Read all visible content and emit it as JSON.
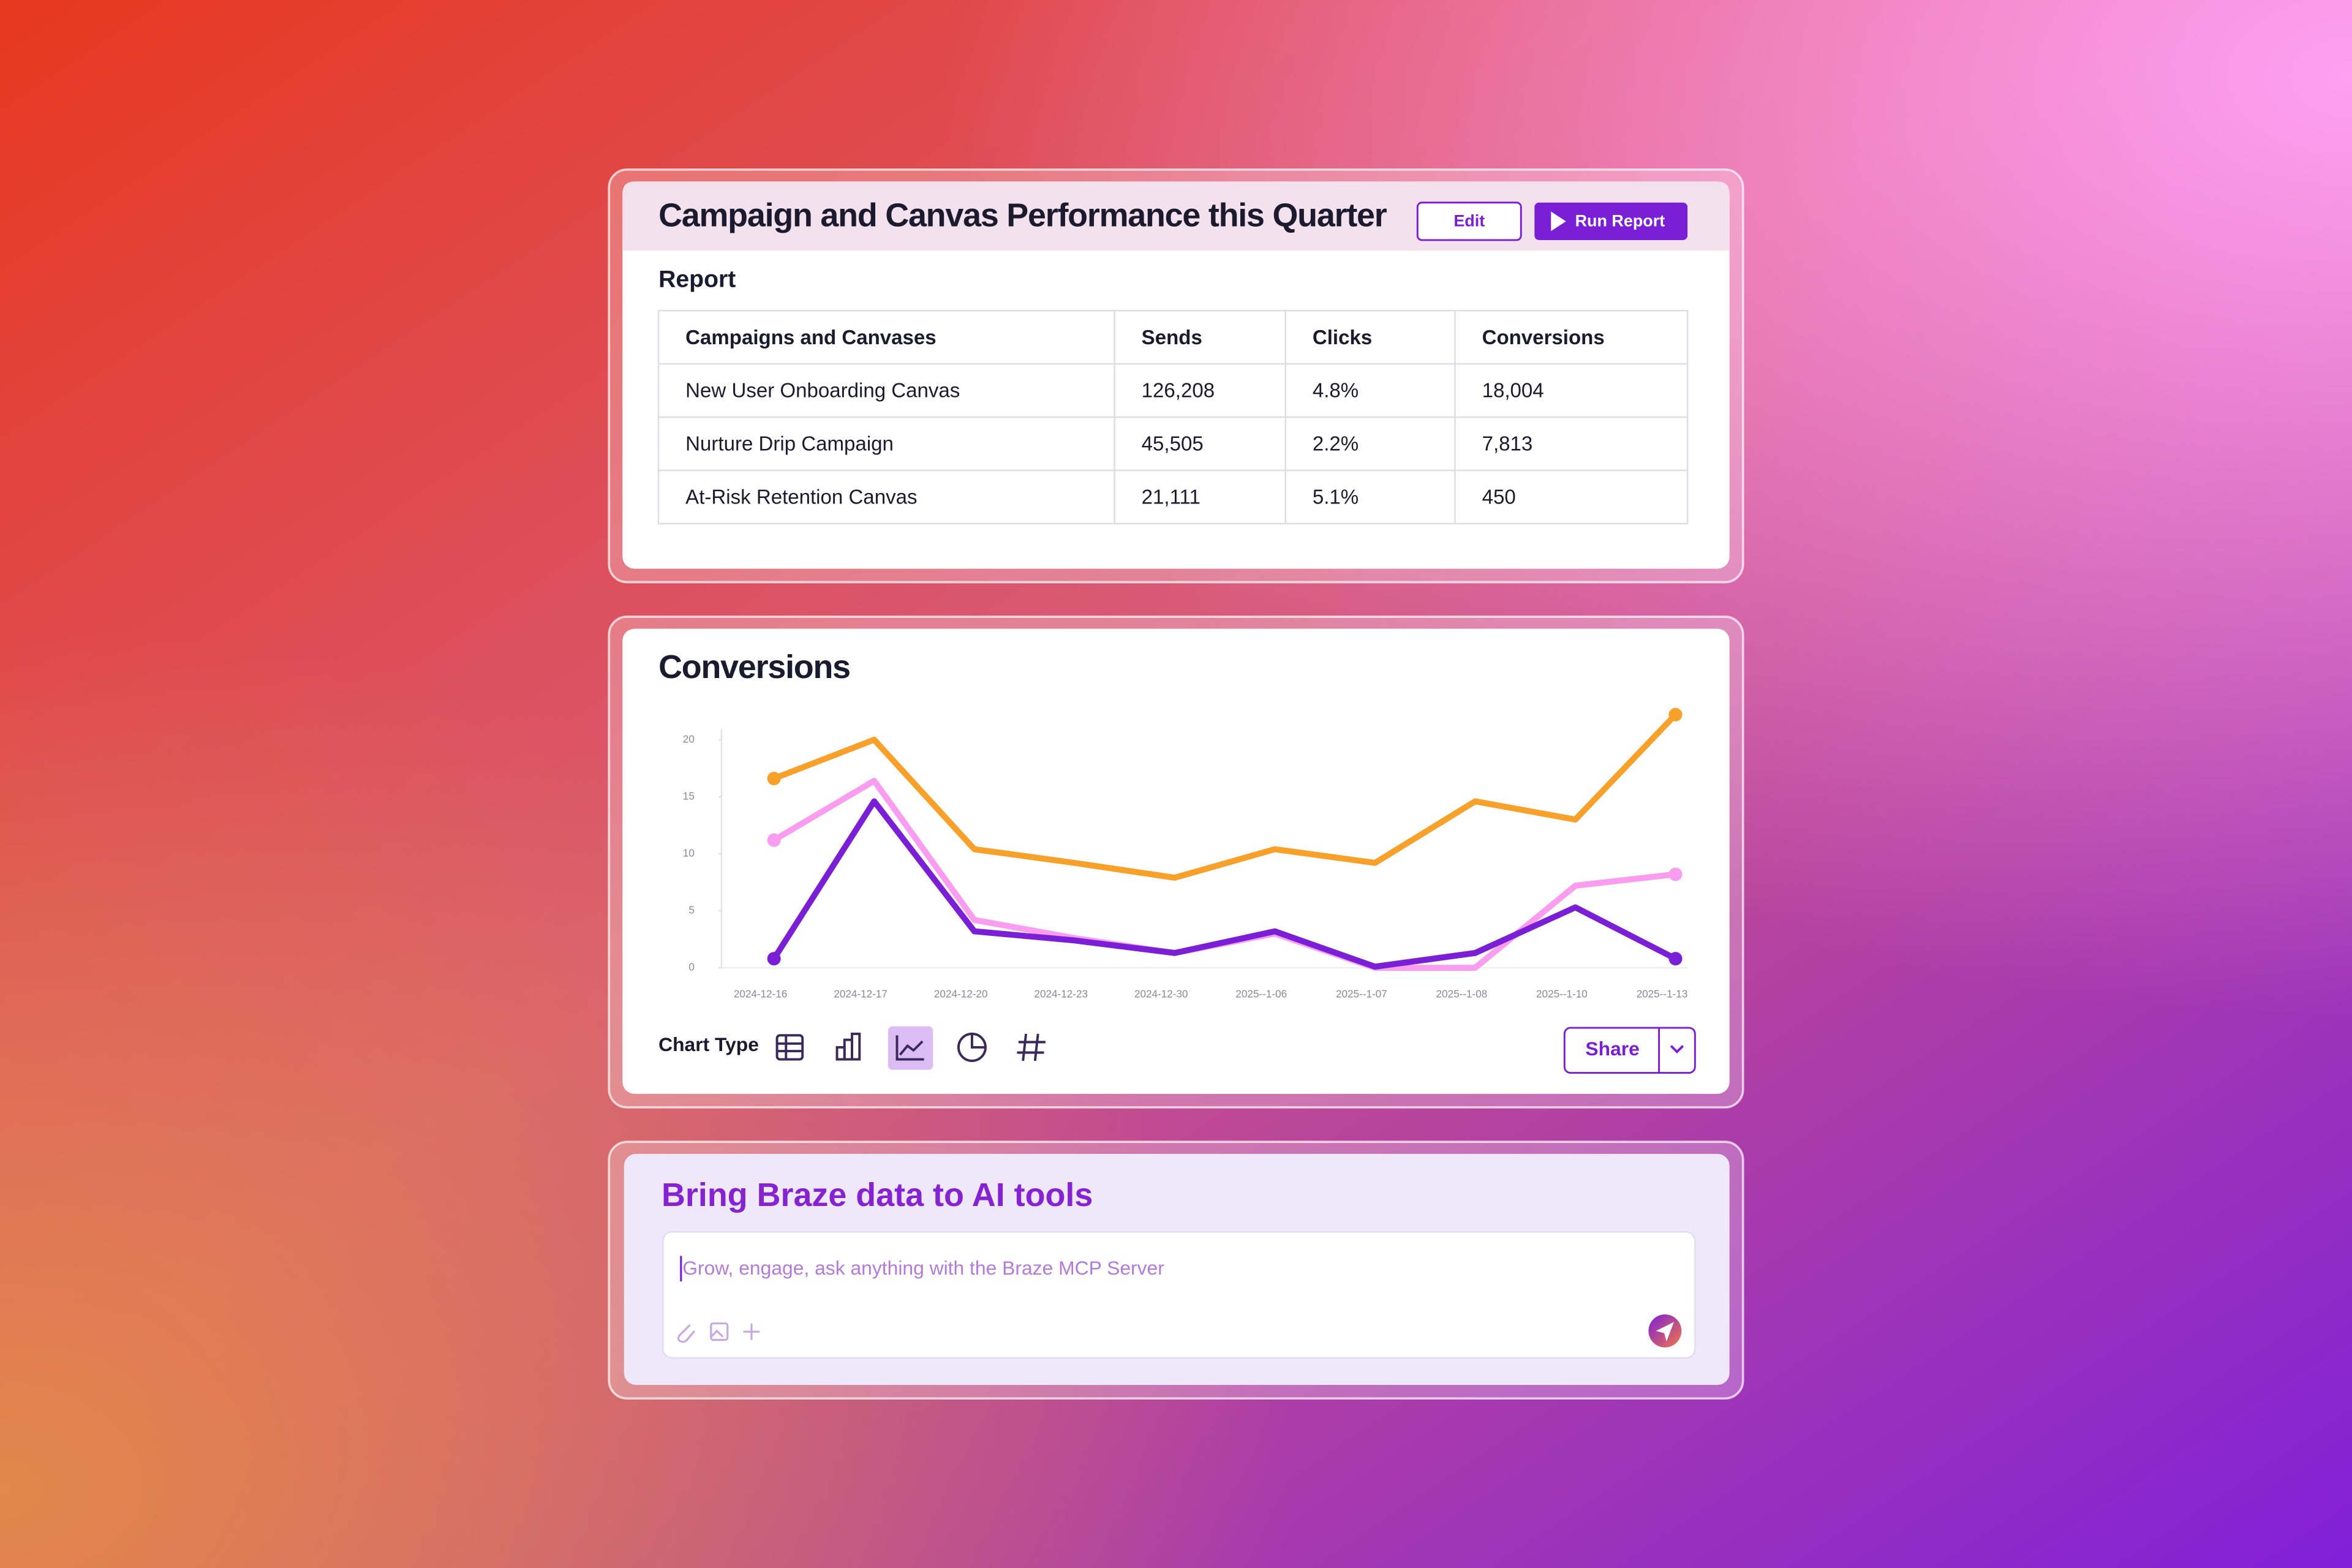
{
  "report": {
    "title": "Campaign and Canvas Performance this Quarter",
    "edit_button": "Edit",
    "run_button": "Run Report",
    "section_label": "Report",
    "table": {
      "columns": [
        "Campaigns and Canvases",
        "Sends",
        "Clicks",
        "Conversions"
      ],
      "rows": [
        [
          "New User Onboarding Canvas",
          "126,208",
          "4.8%",
          "18,004"
        ],
        [
          "Nurture Drip Campaign",
          "45,505",
          "2.2%",
          "7,813"
        ],
        [
          "At-Risk Retention Canvas",
          "21,111",
          "5.1%",
          "450"
        ]
      ]
    }
  },
  "chart_data": {
    "type": "line",
    "title": "Conversions",
    "categories": [
      "2024-12-16",
      "2024-12-17",
      "2024-12-20",
      "2024-12-23",
      "2024-12-30",
      "2025--1-06",
      "2025--1-07",
      "2025--1-08",
      "2025--1-10",
      "2025--1-13"
    ],
    "series": [
      {
        "color": "#f7a12b",
        "values": [
          16.6,
          20,
          10.4,
          9.2,
          7.9,
          10.4,
          9.2,
          14.6,
          13,
          22.2
        ]
      },
      {
        "color": "#fa9cf0",
        "values": [
          11.2,
          16.4,
          4.2,
          2.6,
          1.3,
          3,
          0,
          0,
          7.2,
          8.2
        ]
      },
      {
        "color": "#7b1fd6",
        "values": [
          0.8,
          14.6,
          3.2,
          2.4,
          1.3,
          3.2,
          0.1,
          1.3,
          5.3,
          0.8
        ]
      }
    ],
    "ylim": [
      0,
      22.5
    ],
    "yticks": [
      0,
      5,
      10,
      15,
      20
    ],
    "grid": false
  },
  "chart_controls": {
    "chart_type_label": "Chart Type",
    "share_button": "Share"
  },
  "ai_panel": {
    "title": "Bring Braze data to AI tools",
    "placeholder": "Grow, engage, ask anything with the Braze MCP Server"
  }
}
